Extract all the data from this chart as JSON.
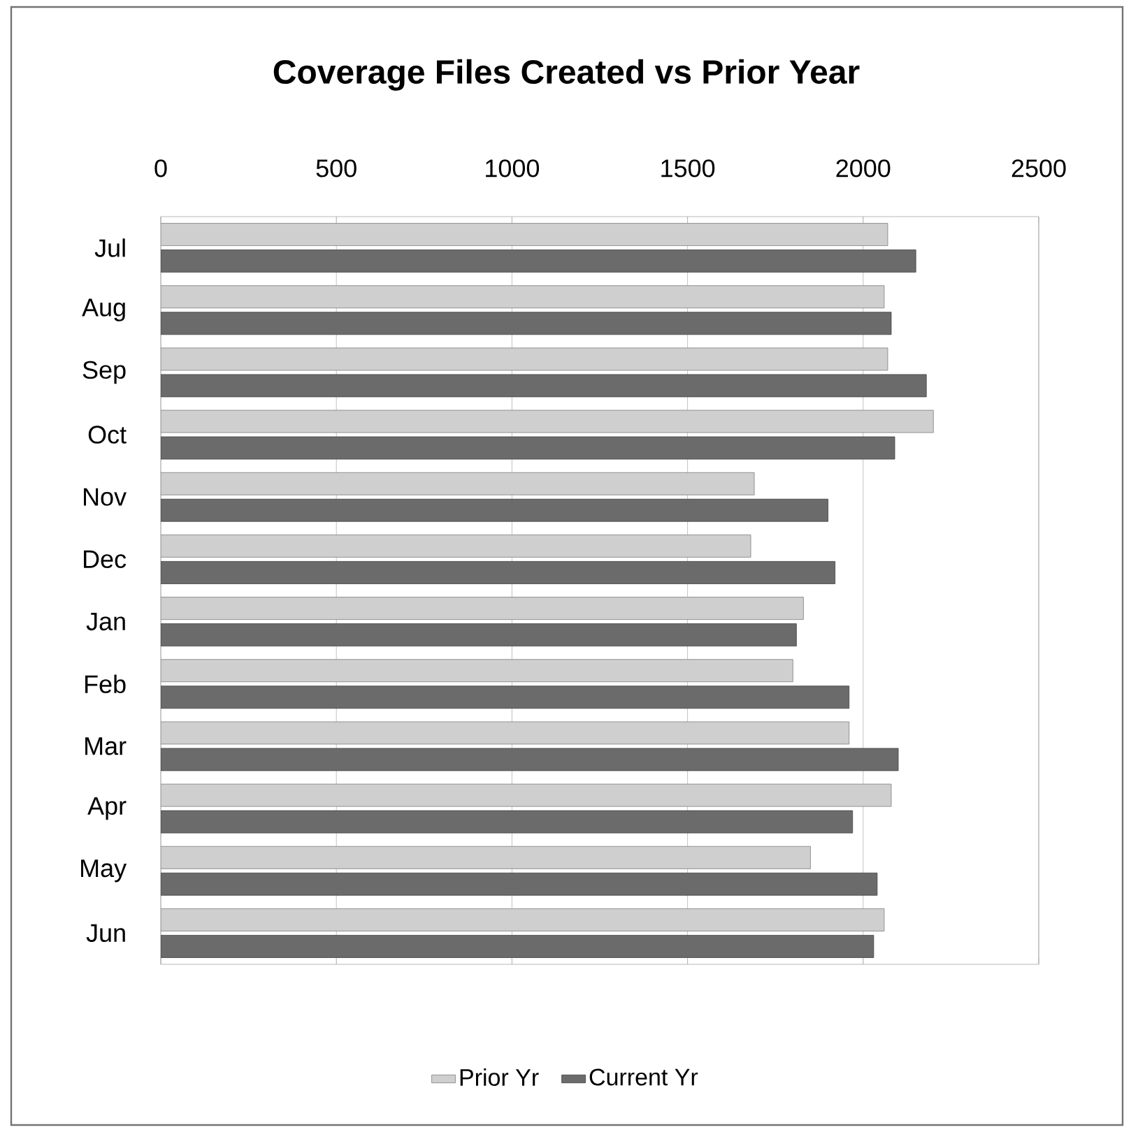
{
  "chart_data": {
    "type": "bar",
    "orientation": "horizontal",
    "title": "Coverage Files Created vs Prior Year",
    "categories": [
      "Jul",
      "Aug",
      "Sep",
      "Oct",
      "Nov",
      "Dec",
      "Jan",
      "Feb",
      "Mar",
      "Apr",
      "May",
      "Jun"
    ],
    "series": [
      {
        "name": "Prior Yr",
        "color": "#cfcfcf",
        "values": [
          2070,
          2060,
          2070,
          2200,
          1690,
          1680,
          1830,
          1800,
          1960,
          2080,
          1850,
          2060
        ]
      },
      {
        "name": "Current Yr",
        "color": "#6b6b6b",
        "values": [
          2150,
          2080,
          2180,
          2090,
          1900,
          1920,
          1810,
          1960,
          2100,
          1970,
          2040,
          2030
        ]
      }
    ],
    "xlim": [
      0,
      2500
    ],
    "xticks": [
      0,
      500,
      1000,
      1500,
      2000,
      2500
    ],
    "grid": "x",
    "legend": "bottom"
  }
}
